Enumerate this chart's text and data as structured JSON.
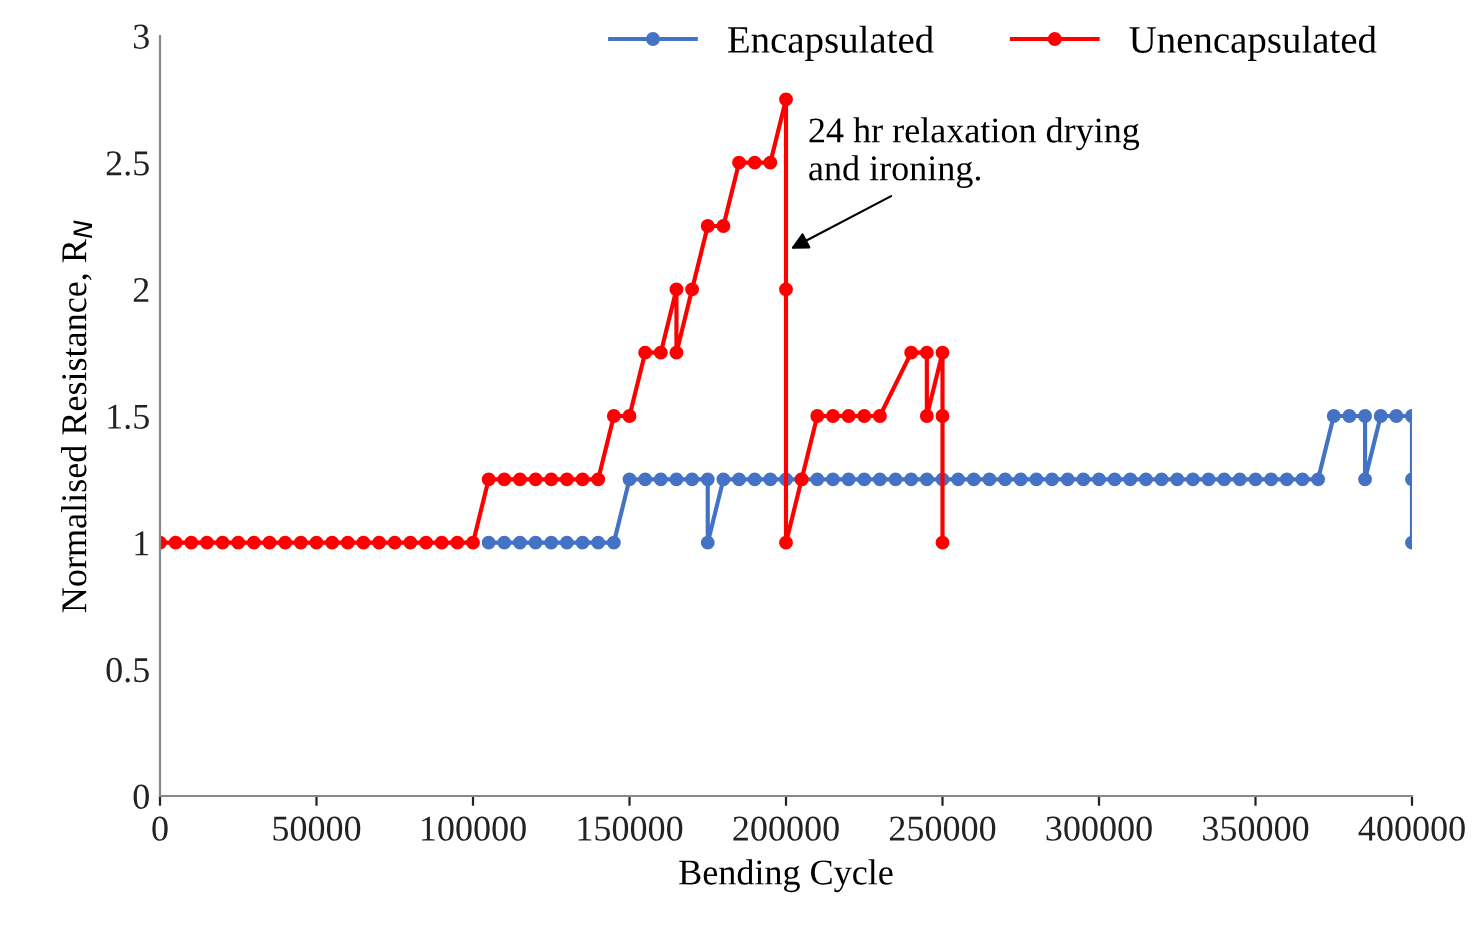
{
  "chart_data": {
    "type": "line",
    "xlabel": "Bending Cycle",
    "ylabel": "Normalised Resistance, R$_{N}$",
    "xlim": [
      0,
      400000
    ],
    "ylim": [
      0,
      3
    ],
    "xticks": [
      0,
      50000,
      100000,
      150000,
      200000,
      250000,
      300000,
      350000,
      400000
    ],
    "yticks": [
      0,
      0.5,
      1,
      1.5,
      2,
      2.5,
      3
    ],
    "grid": false,
    "legend": "top right",
    "marker": "circle",
    "line_style": "solid",
    "annotations": [
      {
        "text": "24 hr relaxation drying\nand ironing.",
        "x": 200000,
        "y": 2.15
      }
    ],
    "series": [
      {
        "name": "Encapsulated",
        "color": "#4472c4",
        "x": [
          105000,
          110000,
          115000,
          120000,
          125000,
          130000,
          135000,
          140000,
          145000,
          150000,
          155000,
          160000,
          165000,
          170000,
          175000,
          175000,
          180000,
          185000,
          190000,
          195000,
          200000,
          205000,
          210000,
          215000,
          220000,
          225000,
          230000,
          235000,
          240000,
          245000,
          250000,
          255000,
          260000,
          265000,
          270000,
          275000,
          280000,
          285000,
          290000,
          295000,
          300000,
          305000,
          310000,
          315000,
          320000,
          325000,
          330000,
          335000,
          340000,
          345000,
          350000,
          355000,
          360000,
          365000,
          370000,
          375000,
          380000,
          385000,
          385000,
          390000,
          395000,
          400000,
          400000,
          400000
        ],
        "values": [
          1,
          1,
          1,
          1,
          1,
          1,
          1,
          1,
          1,
          1.25,
          1.25,
          1.25,
          1.25,
          1.25,
          1.25,
          1,
          1.25,
          1.25,
          1.25,
          1.25,
          1.25,
          1.25,
          1.25,
          1.25,
          1.25,
          1.25,
          1.25,
          1.25,
          1.25,
          1.25,
          1.25,
          1.25,
          1.25,
          1.25,
          1.25,
          1.25,
          1.25,
          1.25,
          1.25,
          1.25,
          1.25,
          1.25,
          1.25,
          1.25,
          1.25,
          1.25,
          1.25,
          1.25,
          1.25,
          1.25,
          1.25,
          1.25,
          1.25,
          1.25,
          1.25,
          1.5,
          1.5,
          1.5,
          1.25,
          1.5,
          1.5,
          1.5,
          1.25,
          1
        ]
      },
      {
        "name": "Unencapsulated",
        "color": "#ff0000",
        "x": [
          0,
          5000,
          10000,
          15000,
          20000,
          25000,
          30000,
          35000,
          40000,
          45000,
          50000,
          55000,
          60000,
          65000,
          70000,
          75000,
          80000,
          85000,
          90000,
          95000,
          100000,
          105000,
          110000,
          115000,
          120000,
          125000,
          130000,
          135000,
          140000,
          145000,
          150000,
          155000,
          160000,
          165000,
          165000,
          170000,
          175000,
          180000,
          185000,
          190000,
          195000,
          200000,
          200000,
          200000,
          205000,
          210000,
          215000,
          220000,
          225000,
          230000,
          240000,
          245000,
          245000,
          250000,
          250000,
          250000
        ],
        "values": [
          1,
          1,
          1,
          1,
          1,
          1,
          1,
          1,
          1,
          1,
          1,
          1,
          1,
          1,
          1,
          1,
          1,
          1,
          1,
          1,
          1,
          1.25,
          1.25,
          1.25,
          1.25,
          1.25,
          1.25,
          1.25,
          1.25,
          1.5,
          1.5,
          1.75,
          1.75,
          2,
          1.75,
          2,
          2.25,
          2.25,
          2.5,
          2.5,
          2.5,
          2.75,
          2,
          1,
          1.25,
          1.5,
          1.5,
          1.5,
          1.5,
          1.5,
          1.75,
          1.75,
          1.5,
          1.75,
          1.5,
          1
        ]
      }
    ]
  }
}
